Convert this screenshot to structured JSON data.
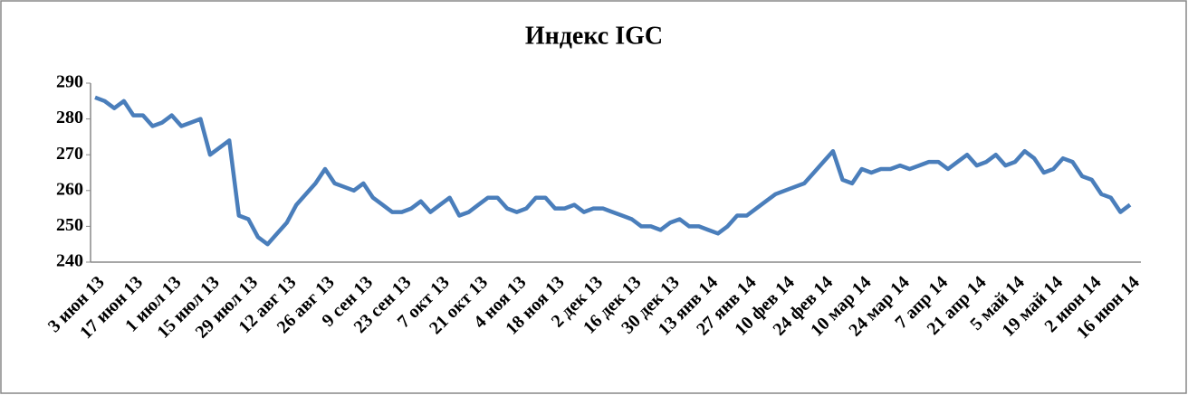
{
  "chart_data": {
    "type": "line",
    "title": "Индекс IGC",
    "categories": [
      "3 июн 13",
      null,
      null,
      null,
      "17 июн 13",
      null,
      null,
      null,
      "1 июл 13",
      null,
      null,
      null,
      "15 июл 13",
      null,
      null,
      null,
      "29 июл 13",
      null,
      null,
      null,
      "12 авг 13",
      null,
      null,
      null,
      "26 авг 13",
      null,
      null,
      null,
      "9 сен 13",
      null,
      null,
      null,
      "23 сен 13",
      null,
      null,
      null,
      "7 окт 13",
      null,
      null,
      null,
      "21 окт 13",
      null,
      null,
      null,
      "4 ноя 13",
      null,
      null,
      null,
      "18 ноя 13",
      null,
      null,
      null,
      "2 дек 13",
      null,
      null,
      null,
      "16 дек 13",
      null,
      null,
      null,
      "30 дек 13",
      null,
      null,
      null,
      "13 янв 14",
      null,
      null,
      null,
      "27 янв 14",
      null,
      null,
      null,
      "10 фев 14",
      null,
      null,
      null,
      "24 фев 14",
      null,
      null,
      null,
      "10 мар 14",
      null,
      null,
      null,
      "24 мар 14",
      null,
      null,
      null,
      "7 апр 14",
      null,
      null,
      null,
      "21 апр 14",
      null,
      null,
      null,
      "5 май 14",
      null,
      null,
      null,
      "19 май 14",
      null,
      null,
      null,
      "2 июн 14",
      null,
      null,
      null,
      "16 июн 14"
    ],
    "series": [
      {
        "name": "Индекс IGC",
        "color": "#4a7ebb",
        "values": [
          286,
          285,
          283,
          285,
          281,
          281,
          278,
          279,
          281,
          278,
          279,
          280,
          270,
          272,
          274,
          253,
          252,
          247,
          245,
          248,
          251,
          256,
          259,
          262,
          266,
          262,
          261,
          260,
          262,
          258,
          256,
          254,
          254,
          255,
          257,
          254,
          256,
          258,
          253,
          254,
          256,
          258,
          258,
          255,
          254,
          255,
          258,
          258,
          255,
          255,
          256,
          254,
          255,
          255,
          254,
          253,
          252,
          250,
          250,
          249,
          251,
          252,
          250,
          250,
          249,
          248,
          250,
          253,
          253,
          255,
          257,
          259,
          260,
          261,
          262,
          265,
          268,
          271,
          263,
          262,
          266,
          265,
          266,
          266,
          267,
          266,
          267,
          268,
          268,
          266,
          268,
          270,
          267,
          268,
          270,
          267,
          268,
          271,
          269,
          265,
          266,
          269,
          268,
          264,
          263,
          259,
          258,
          254,
          256
        ]
      }
    ],
    "ylim": [
      240,
      290
    ],
    "yticks": [
      240,
      250,
      260,
      270,
      280,
      290
    ],
    "grid": false
  }
}
